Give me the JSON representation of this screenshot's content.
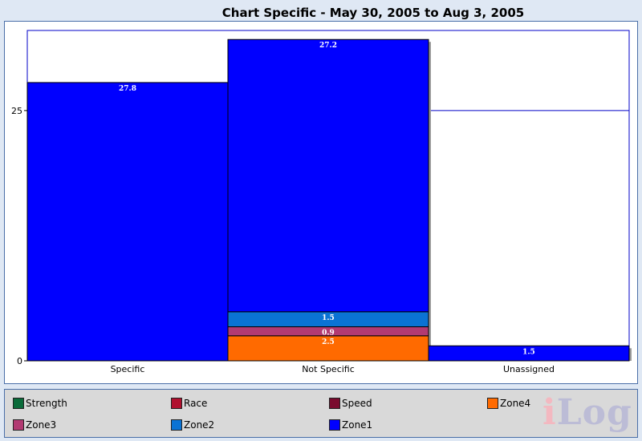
{
  "chart_data": {
    "type": "bar",
    "stacked": true,
    "title": "Chart Specific - May 30, 2005 to Aug 3, 2005",
    "xlabel": "",
    "ylabel": "",
    "categories": [
      "Specific",
      "Not Specific",
      "Unassigned"
    ],
    "ylim": [
      0,
      33
    ],
    "yticks": [
      0,
      25
    ],
    "reference_line": 25,
    "series": [
      {
        "name": "Strength",
        "color": "#0b6b3a",
        "values": [
          0,
          0,
          0
        ]
      },
      {
        "name": "Race",
        "color": "#b0102e",
        "values": [
          0,
          0,
          0
        ]
      },
      {
        "name": "Speed",
        "color": "#7a0b2e",
        "values": [
          0,
          0,
          0
        ]
      },
      {
        "name": "Zone4",
        "color": "#ff6a00",
        "values": [
          0,
          2.5,
          0
        ]
      },
      {
        "name": "Zone3",
        "color": "#b23a72",
        "values": [
          0,
          0.9,
          0
        ]
      },
      {
        "name": "Zone2",
        "color": "#0a73d4",
        "values": [
          0,
          1.5,
          0
        ]
      },
      {
        "name": "Zone1",
        "color": "#0000ff",
        "values": [
          27.8,
          27.2,
          1.5
        ]
      }
    ],
    "data_labels": [
      {
        "category": "Specific",
        "series": "Zone1",
        "text": "27.8"
      },
      {
        "category": "Not Specific",
        "series": "Zone4",
        "text": "2.5"
      },
      {
        "category": "Not Specific",
        "series": "Zone3",
        "text": "0.9"
      },
      {
        "category": "Not Specific",
        "series": "Zone2",
        "text": "1.5"
      },
      {
        "category": "Not Specific",
        "series": "Zone1",
        "text": "27.2"
      },
      {
        "category": "Unassigned",
        "series": "Zone1",
        "text": "1.5"
      }
    ],
    "legend_position": "bottom"
  },
  "watermark": "iLog"
}
